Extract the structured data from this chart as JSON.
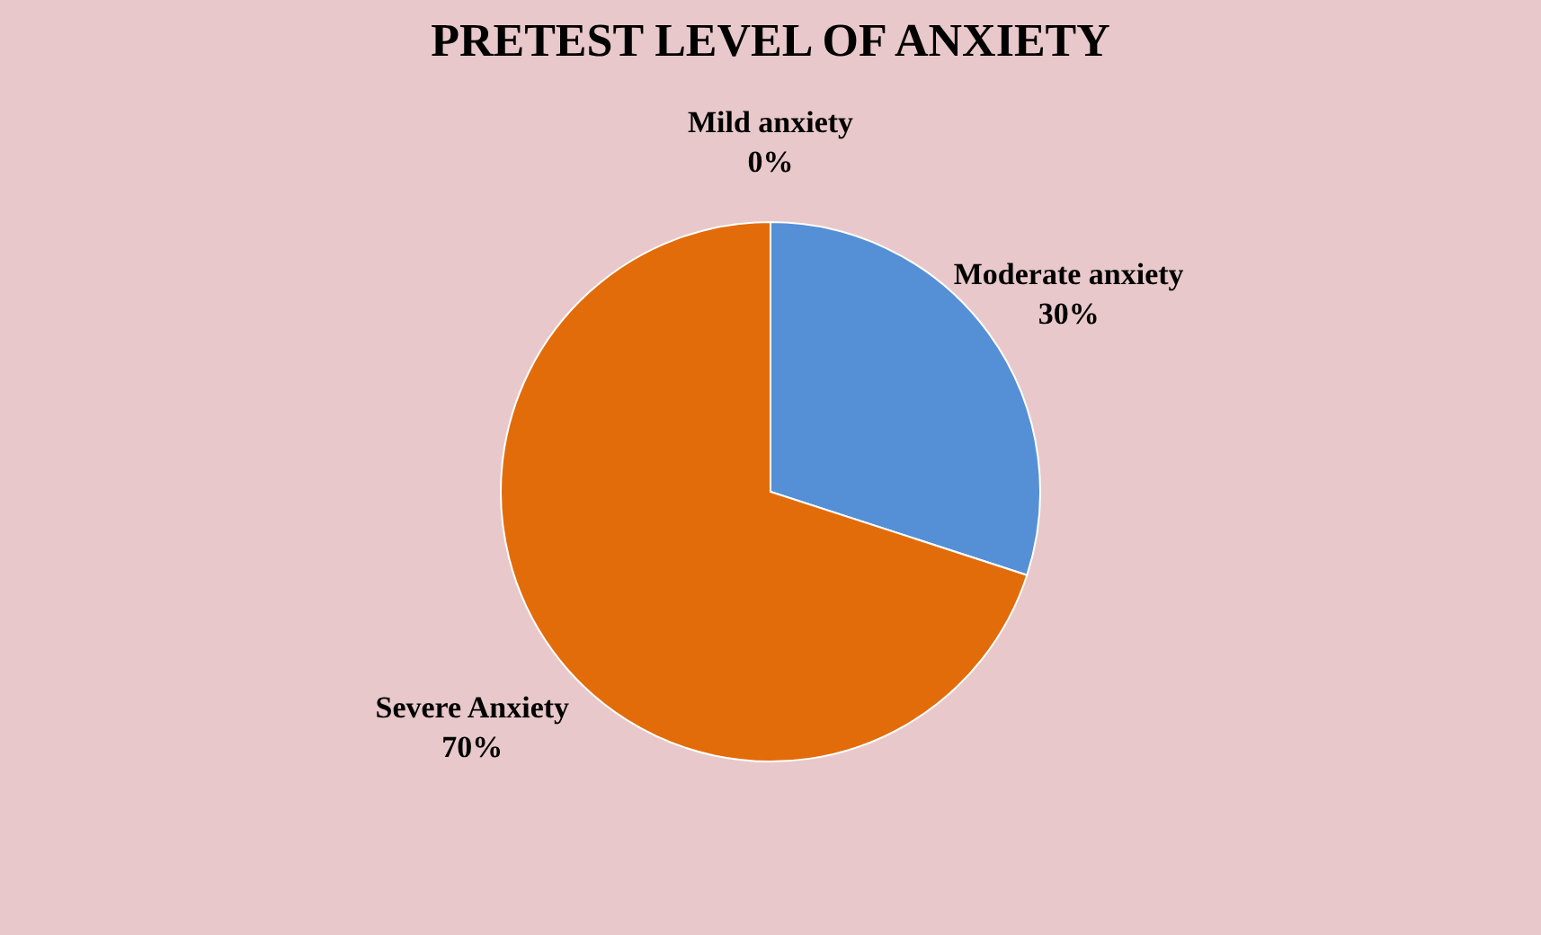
{
  "chart_data": {
    "type": "pie",
    "title": "PRETEST  LEVEL OF ANXIETY",
    "categories": [
      "Mild anxiety",
      "Moderate anxiety",
      "Severe Anxiety"
    ],
    "values": [
      0,
      30,
      70
    ],
    "colors": [
      "#a5a5a5",
      "#5590d6",
      "#e36c0a"
    ],
    "value_labels": [
      "0%",
      "30%",
      "70%"
    ],
    "legend": false
  }
}
